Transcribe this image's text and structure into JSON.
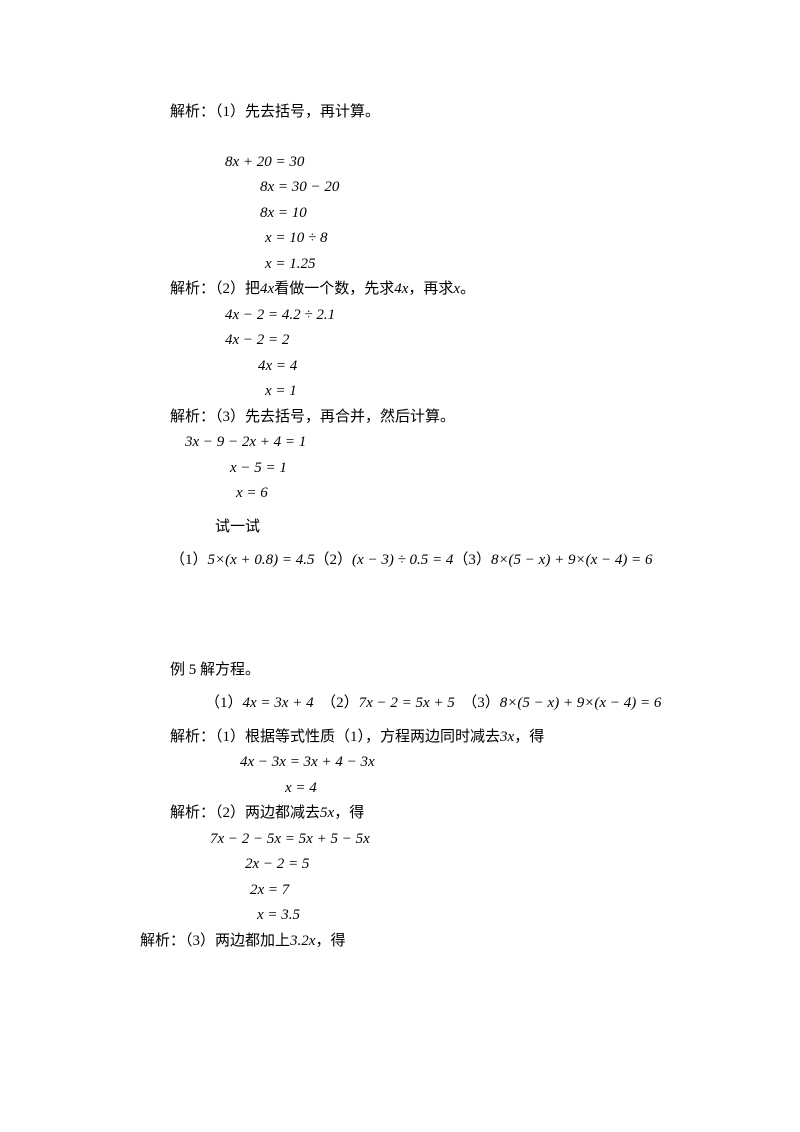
{
  "doc": {
    "font_color": "#000000",
    "bg_color": "#ffffff",
    "font_size_pt": 11,
    "analysis1": "解析：（1）先去括号，再计算。",
    "sol1": {
      "l1": "8x + 20 = 30",
      "l2": "8x = 30 − 20",
      "l3": "8x = 10",
      "l4": "x = 10 ÷ 8",
      "l5": "x = 1.25"
    },
    "analysis2_a": "解析：（2）把",
    "analysis2_b": "4x",
    "analysis2_c": "看做一个数，先求",
    "analysis2_d": "4x",
    "analysis2_e": "，再求",
    "analysis2_f": "x",
    "analysis2_g": "。",
    "sol2": {
      "l1": "4x − 2 = 4.2 ÷ 2.1",
      "l2": "4x − 2 = 2",
      "l3": "4x = 4",
      "l4": "x = 1"
    },
    "analysis3": "解析：（3）先去括号，再合并，然后计算。",
    "sol3": {
      "l1": "3x − 9 − 2x + 4 = 1",
      "l2": "x − 5 = 1",
      "l3": "x = 6"
    },
    "try_label": "试一试",
    "try1_a": "（1）",
    "try1_b": "5×(x + 0.8) = 4.5",
    "try2_a": "（2）",
    "try2_b": "(x − 3) ÷ 0.5 = 4",
    "try3_a": "（3）",
    "try3_b": "8×(5 − x) + 9×(x − 4) = 6",
    "ex5_title": "例 5 解方程。",
    "ex5_1a": "（1）",
    "ex5_1b": "4x = 3x + 4",
    "ex5_2a": "（2）",
    "ex5_2b": "7x − 2 = 5x + 5",
    "ex5_3a": "（3）",
    "ex5_3b": "8×(5 − x) + 9×(x − 4) = 6",
    "ex5_an1_a": "解析：（1）根据等式性质（1），方程两边同时减去",
    "ex5_an1_b": "3x",
    "ex5_an1_c": "，得",
    "ex5_sol1": {
      "l1": "4x − 3x = 3x + 4 − 3x",
      "l2": "x = 4"
    },
    "ex5_an2_a": "解析：（2）两边都减去",
    "ex5_an2_b": "5x",
    "ex5_an2_c": "，得",
    "ex5_sol2": {
      "l1": "7x − 2 − 5x = 5x + 5 − 5x",
      "l2": "2x − 2 = 5",
      "l3": "2x = 7",
      "l4": "x = 3.5"
    },
    "ex5_an3_a": "解析：（3）两边都加上",
    "ex5_an3_b": "3.2x",
    "ex5_an3_c": "，得"
  }
}
